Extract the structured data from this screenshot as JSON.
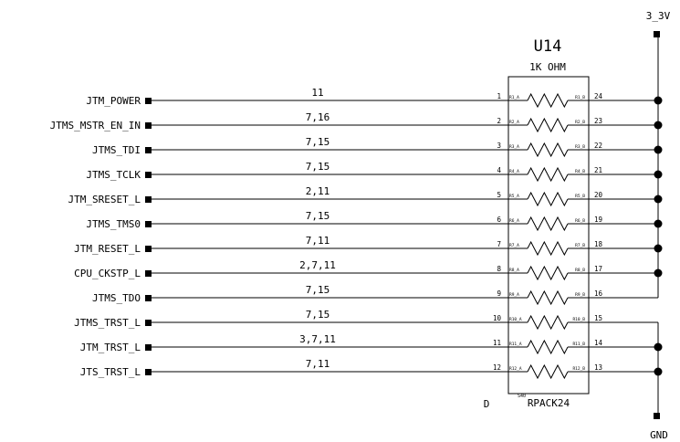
{
  "component": {
    "refdes": "U14",
    "value": "1K OHM",
    "footprint": "RPACK24",
    "small_note": "S40",
    "corner_letter": "D"
  },
  "power": {
    "top_rail": "3_3V",
    "bottom_rail": "GND"
  },
  "nets": [
    {
      "name": "JTM_POWER",
      "pages": "11",
      "pin_a": "1",
      "pin_b": "24",
      "lab_a": "R1_A",
      "lab_b": "R1_B",
      "rail": "3_3V"
    },
    {
      "name": "JTMS_MSTR_EN_IN",
      "pages": "7,16",
      "pin_a": "2",
      "pin_b": "23",
      "lab_a": "R2_A",
      "lab_b": "R2_B",
      "rail": "3_3V"
    },
    {
      "name": "JTMS_TDI",
      "pages": "7,15",
      "pin_a": "3",
      "pin_b": "22",
      "lab_a": "R3_A",
      "lab_b": "R3_B",
      "rail": "3_3V"
    },
    {
      "name": "JTMS_TCLK",
      "pages": "7,15",
      "pin_a": "4",
      "pin_b": "21",
      "lab_a": "R4_A",
      "lab_b": "R4_B",
      "rail": "3_3V"
    },
    {
      "name": "JTM_SRESET_L",
      "pages": "2,11",
      "pin_a": "5",
      "pin_b": "20",
      "lab_a": "R5_A",
      "lab_b": "R5_B",
      "rail": "3_3V"
    },
    {
      "name": "JTMS_TMS0",
      "pages": "7,15",
      "pin_a": "6",
      "pin_b": "19",
      "lab_a": "R6_A",
      "lab_b": "R6_B",
      "rail": "3_3V"
    },
    {
      "name": "JTM_RESET_L",
      "pages": "7,11",
      "pin_a": "7",
      "pin_b": "18",
      "lab_a": "R7_A",
      "lab_b": "R7_B",
      "rail": "3_3V"
    },
    {
      "name": "CPU_CKSTP_L",
      "pages": "2,7,11",
      "pin_a": "8",
      "pin_b": "17",
      "lab_a": "R8_A",
      "lab_b": "R8_B",
      "rail": "3_3V"
    },
    {
      "name": "JTMS_TDO",
      "pages": "7,15",
      "pin_a": "9",
      "pin_b": "16",
      "lab_a": "R9_A",
      "lab_b": "R9_B",
      "rail": "3_3V"
    },
    {
      "name": "JTMS_TRST_L",
      "pages": "7,15",
      "pin_a": "10",
      "pin_b": "15",
      "lab_a": "R10_A",
      "lab_b": "R10_B",
      "rail": "GND"
    },
    {
      "name": "JTM_TRST_L",
      "pages": "3,7,11",
      "pin_a": "11",
      "pin_b": "14",
      "lab_a": "R11_A",
      "lab_b": "R11_B",
      "rail": "GND"
    },
    {
      "name": "JTS_TRST_L",
      "pages": "7,11",
      "pin_a": "12",
      "pin_b": "13",
      "lab_a": "R12_A",
      "lab_b": "R12_B",
      "rail": "GND"
    }
  ]
}
